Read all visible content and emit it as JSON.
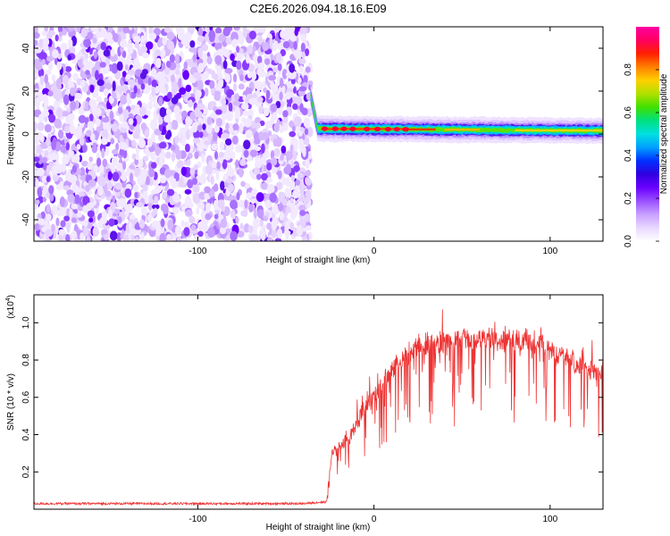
{
  "title": "C2E6.2026.094.18.16.E09",
  "chart_data": [
    {
      "type": "heatmap",
      "xlabel": "Height of straight line (km)",
      "ylabel": "Frequency (Hz)",
      "xlim": [
        -193,
        130
      ],
      "ylim": [
        -50,
        50
      ],
      "x_ticks": [
        -100,
        0,
        100
      ],
      "y_ticks": [
        -40,
        -20,
        0,
        20,
        40
      ],
      "colorbar": {
        "label": "Normalized spectral amplitude",
        "range": [
          0,
          1
        ],
        "ticks": [
          0.0,
          0.2,
          0.4,
          0.6,
          0.8
        ],
        "colors": [
          "#ffffff",
          "#e8d8ff",
          "#c9a0ff",
          "#9a50ff",
          "#6a00ff",
          "#3000e0",
          "#0030ff",
          "#00a0ff",
          "#00e0e0",
          "#00e080",
          "#40e000",
          "#b0e000",
          "#ffd000",
          "#ff8000",
          "#ff2000",
          "#ff0060",
          "#ff00a0"
        ]
      },
      "noise_region_x": [
        -193,
        -36
      ],
      "ridge": {
        "x_start": -36,
        "y_start": 18,
        "y_settle": 2.5,
        "y_end": 1.5,
        "peaks_x": [
          -28,
          -22,
          -17,
          -12,
          -4,
          2,
          8,
          13,
          18
        ]
      }
    },
    {
      "type": "line",
      "xlabel": "Height of straight line (km)",
      "ylabel": "SNR (10 * v/v)",
      "y_scale_label": "(x10",
      "y_scale_exp": "4",
      "xlim": [
        -193,
        130
      ],
      "ylim": [
        0,
        1.15
      ],
      "x_ticks": [
        -100,
        0,
        100
      ],
      "y_ticks": [
        0.2,
        0.4,
        0.6,
        0.8,
        1.0
      ],
      "series": [
        {
          "color": "#ee3333",
          "profile": [
            [
              -193,
              0.03
            ],
            [
              -40,
              0.03
            ],
            [
              -27,
              0.04
            ],
            [
              -24,
              0.32
            ],
            [
              -15,
              0.4
            ],
            [
              -5,
              0.58
            ],
            [
              5,
              0.72
            ],
            [
              15,
              0.86
            ],
            [
              25,
              0.93
            ],
            [
              40,
              0.96
            ],
            [
              60,
              0.97
            ],
            [
              75,
              0.97
            ],
            [
              90,
              0.96
            ],
            [
              100,
              0.9
            ],
            [
              115,
              0.83
            ],
            [
              130,
              0.76
            ]
          ]
        }
      ]
    }
  ]
}
